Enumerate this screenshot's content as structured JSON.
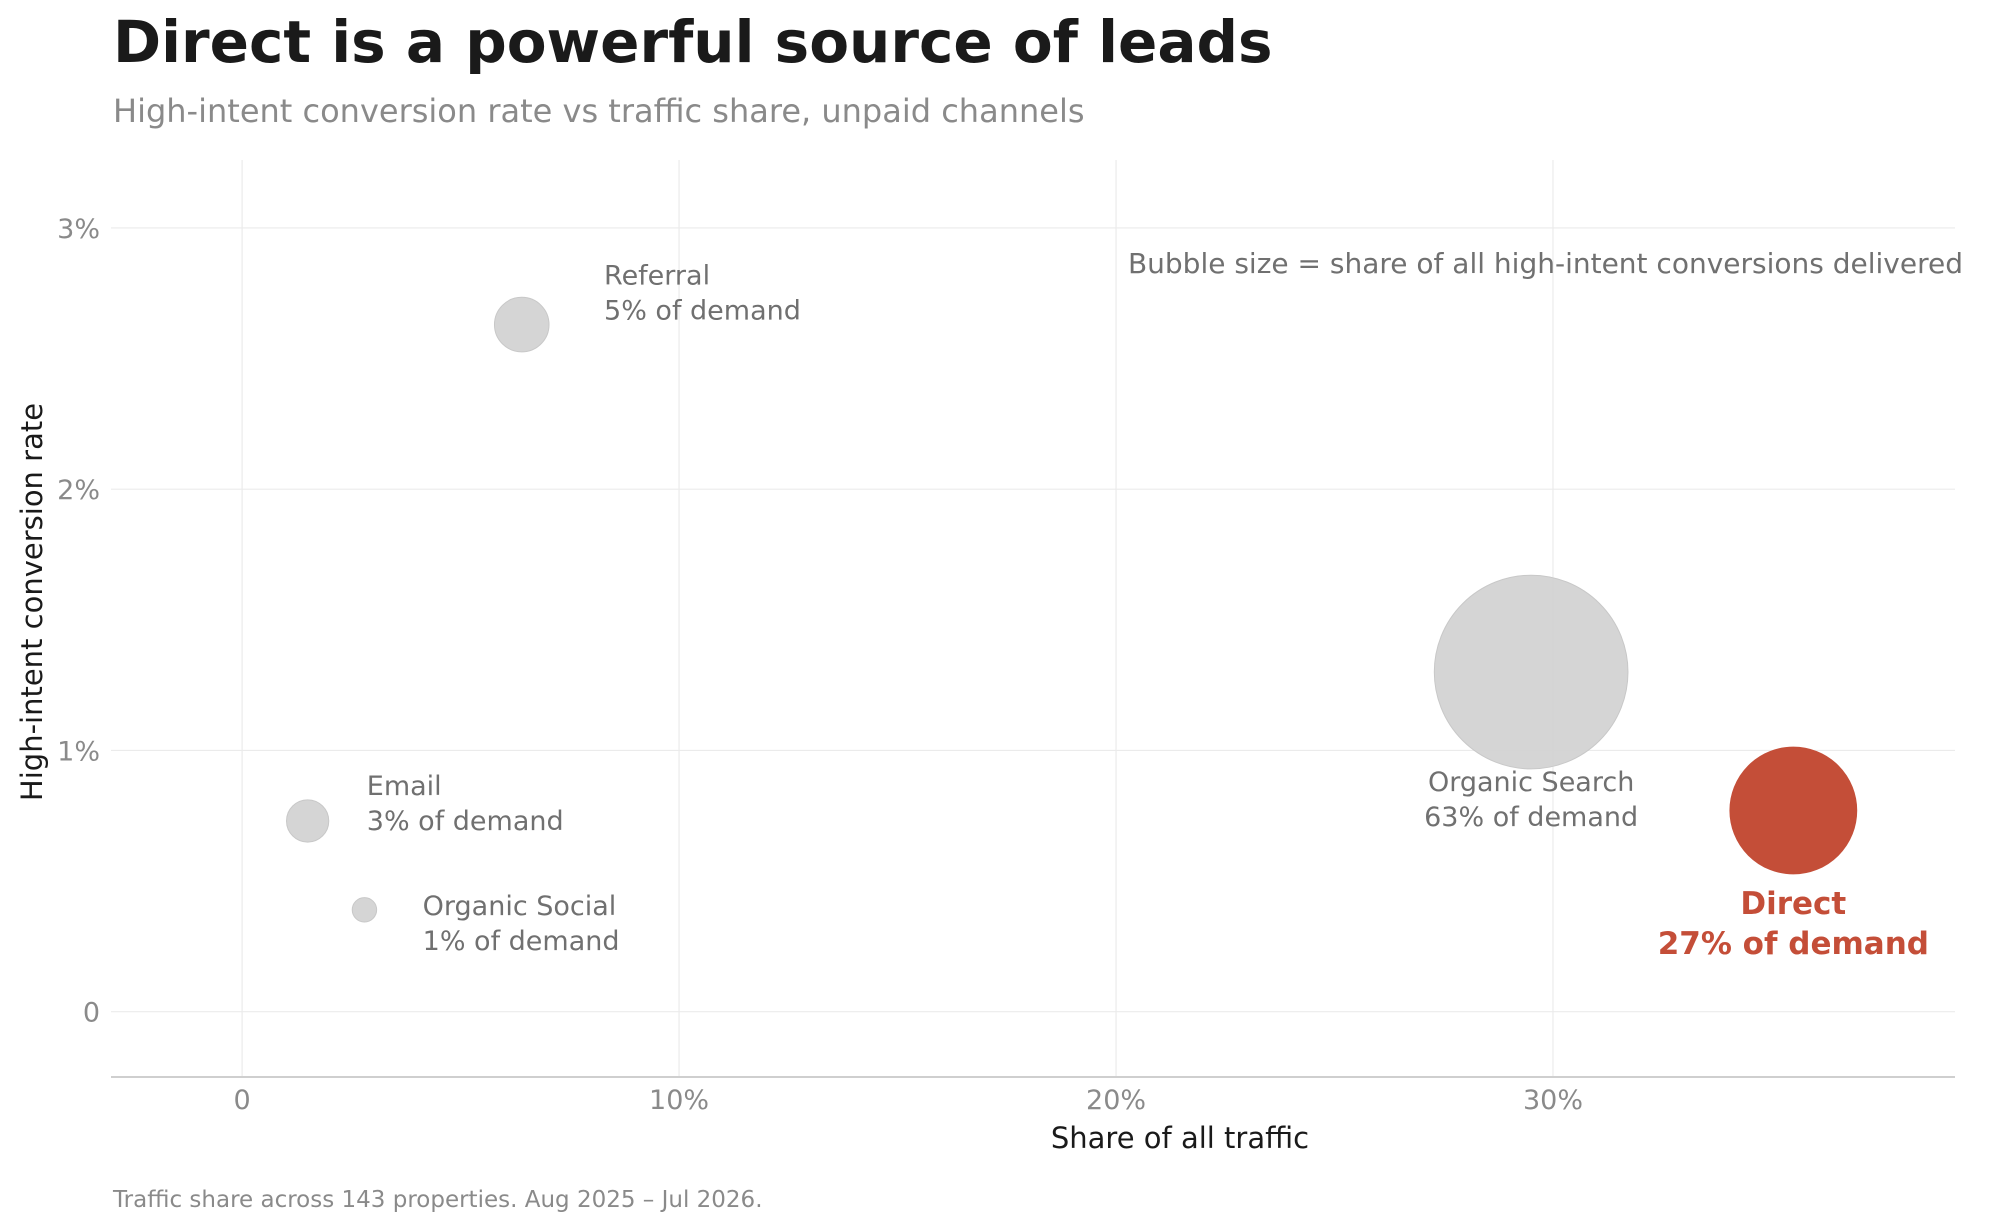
{
  "header": {
    "title": "Direct is a powerful source of leads",
    "subtitle": "High-intent conversion rate vs traffic share, unpaid channels"
  },
  "footer": {
    "caption": "Traffic share across 143 properties. Aug 2025 – Jul 2026."
  },
  "colors": {
    "highlight": "#c44e38",
    "bubble": "#d3d3d3",
    "label": "#707070",
    "axis_tick": "#8a8a8a",
    "grid": "#ebebeb"
  },
  "chart_data": {
    "type": "scatter",
    "title": "Direct is a powerful source of leads",
    "subtitle": "High-intent conversion rate vs traffic share, unpaid channels",
    "xlabel": "Share of all traffic",
    "ylabel": "High-intent conversion rate",
    "xlim": [
      -0.03,
      0.392
    ],
    "ylim": [
      -0.0025,
      0.0326
    ],
    "xticks": [
      0,
      0.1,
      0.2,
      0.3
    ],
    "xtick_labels": [
      "0",
      "10%",
      "20%",
      "30%"
    ],
    "yticks": [
      0,
      0.01,
      0.02,
      0.03
    ],
    "ytick_labels": [
      "0",
      "1%",
      "2%",
      "3%"
    ],
    "grid": true,
    "annotation": "Bubble size = share of all high-intent conversions delivered",
    "points": [
      {
        "channel": "Referral",
        "label": "5% of demand",
        "x": 0.064,
        "y": 0.0263,
        "demand": 0.05,
        "highlight": false
      },
      {
        "channel": "Email",
        "label": "3% of demand",
        "x": 0.015,
        "y": 0.0073,
        "demand": 0.03,
        "highlight": false
      },
      {
        "channel": "Organic Social",
        "label": "1% of demand",
        "x": 0.028,
        "y": 0.0039,
        "demand": 0.01,
        "highlight": false
      },
      {
        "channel": "Organic Search",
        "label": "63% of demand",
        "x": 0.295,
        "y": 0.013,
        "demand": 0.63,
        "highlight": false
      },
      {
        "channel": "Direct",
        "label": "27% of demand",
        "x": 0.355,
        "y": 0.0077,
        "demand": 0.27,
        "highlight": true
      }
    ]
  }
}
